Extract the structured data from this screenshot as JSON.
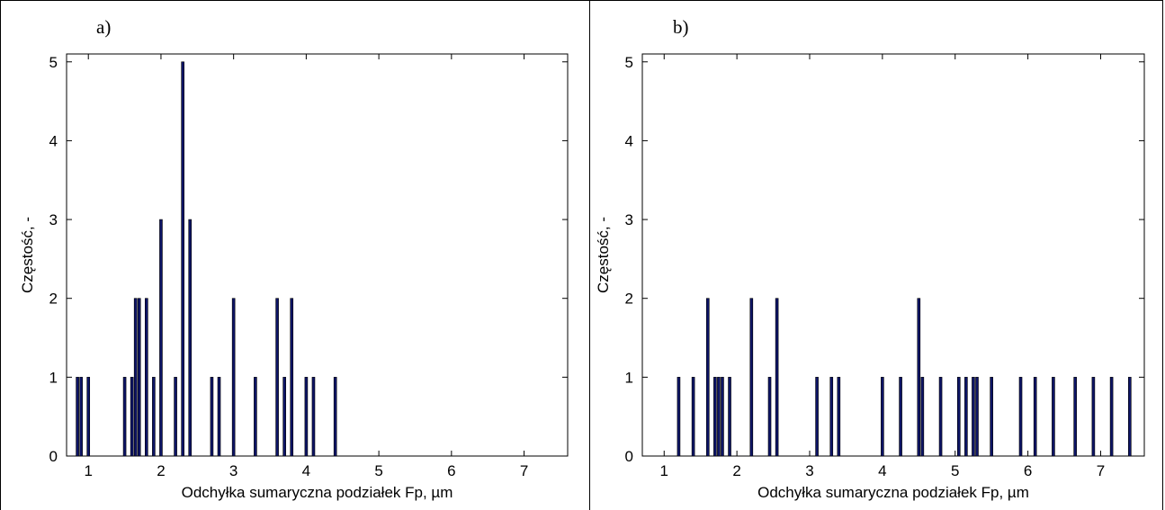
{
  "chart_data": [
    {
      "type": "bar",
      "panel_label": "a)",
      "xlabel": "Odchyłka sumaryczna podziałek Fp, µm",
      "ylabel": "Częstość, -",
      "xlim": [
        0.7,
        7.6
      ],
      "ylim": [
        0,
        5.1
      ],
      "xticks": [
        1,
        2,
        3,
        4,
        5,
        6,
        7
      ],
      "yticks": [
        0,
        1,
        2,
        3,
        4,
        5
      ],
      "grid": false,
      "bar_color": "#0d1466",
      "x": [
        0.85,
        0.9,
        1.0,
        1.5,
        1.6,
        1.65,
        1.7,
        1.8,
        1.9,
        2.0,
        2.2,
        2.3,
        2.4,
        2.7,
        2.8,
        3.0,
        3.3,
        3.6,
        3.7,
        3.8,
        4.0,
        4.1,
        4.4
      ],
      "values": [
        1,
        1,
        1,
        1,
        1,
        2,
        2,
        2,
        1,
        3,
        1,
        5,
        3,
        1,
        1,
        2,
        1,
        2,
        1,
        2,
        1,
        1,
        1
      ]
    },
    {
      "type": "bar",
      "panel_label": "b)",
      "xlabel": "Odchyłka sumaryczna podziałek Fp, µm",
      "ylabel": "Częstość, -",
      "xlim": [
        0.7,
        7.6
      ],
      "ylim": [
        0,
        5.1
      ],
      "xticks": [
        1,
        2,
        3,
        4,
        5,
        6,
        7
      ],
      "yticks": [
        0,
        1,
        2,
        3,
        4,
        5
      ],
      "grid": false,
      "bar_color": "#0d1466",
      "x": [
        1.2,
        1.4,
        1.6,
        1.7,
        1.75,
        1.8,
        1.9,
        2.2,
        2.45,
        2.55,
        3.1,
        3.3,
        3.4,
        4.0,
        4.25,
        4.5,
        4.55,
        4.8,
        5.05,
        5.15,
        5.25,
        5.3,
        5.5,
        5.9,
        6.1,
        6.35,
        6.65,
        6.9,
        7.15,
        7.4
      ],
      "values": [
        1,
        1,
        2,
        1,
        1,
        1,
        1,
        2,
        1,
        2,
        1,
        1,
        1,
        1,
        1,
        2,
        1,
        1,
        1,
        1,
        1,
        1,
        1,
        1,
        1,
        1,
        1,
        1,
        1,
        1
      ]
    }
  ]
}
